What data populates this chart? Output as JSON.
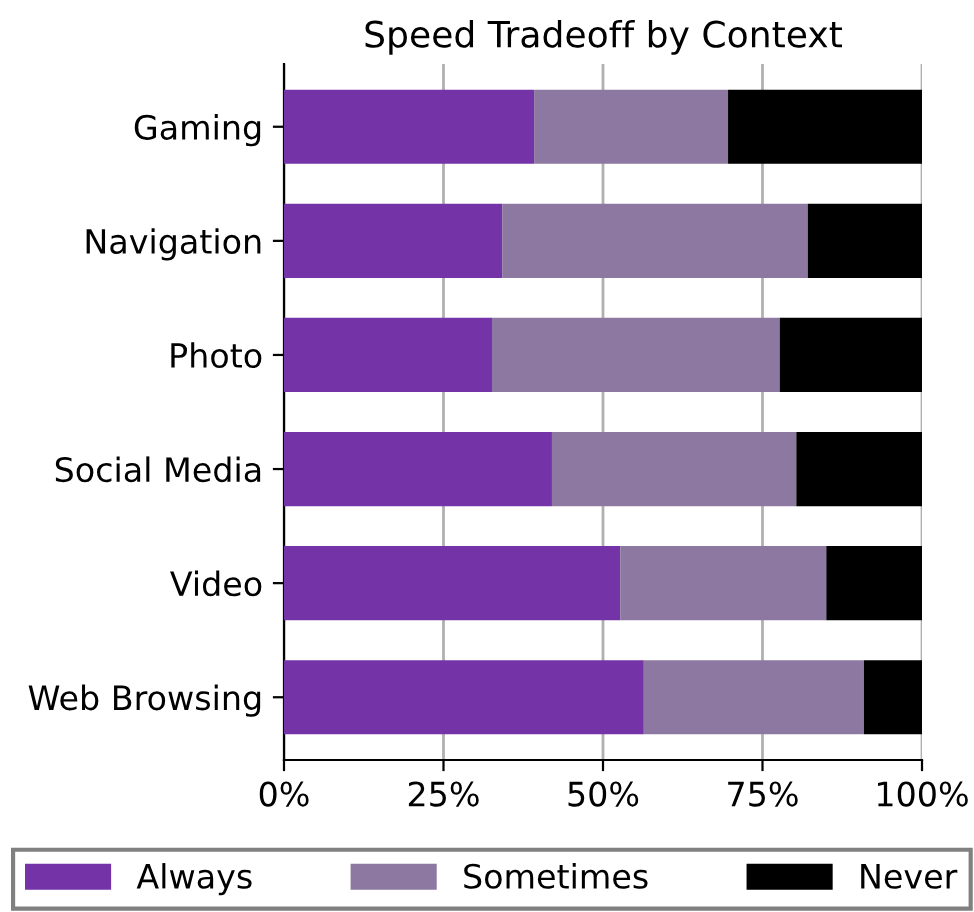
{
  "chart_data": {
    "type": "bar",
    "orientation": "horizontal",
    "stacked": true,
    "title": "Speed Tradeoff by Context",
    "categories": [
      "Gaming",
      "Navigation",
      "Photo",
      "Social Media",
      "Video",
      "Web Browsing"
    ],
    "series": [
      {
        "name": "Always",
        "color": "#7434a8",
        "values": [
          39.2,
          34.2,
          32.6,
          42.0,
          52.7,
          56.4
        ]
      },
      {
        "name": "Sometimes",
        "color": "#8c78a0",
        "values": [
          30.4,
          47.9,
          45.1,
          38.3,
          32.3,
          34.5
        ]
      },
      {
        "name": "Never",
        "color": "#000000",
        "values": [
          30.4,
          17.9,
          22.3,
          19.7,
          15.0,
          9.1
        ]
      }
    ],
    "xlim": [
      0,
      100
    ],
    "xticks": [
      {
        "value": 0,
        "label": "0%"
      },
      {
        "value": 25,
        "label": "25%"
      },
      {
        "value": 50,
        "label": "50%"
      },
      {
        "value": 75,
        "label": "75%"
      },
      {
        "value": 100,
        "label": "100%"
      }
    ],
    "grid": "x",
    "legend": "bottom"
  }
}
